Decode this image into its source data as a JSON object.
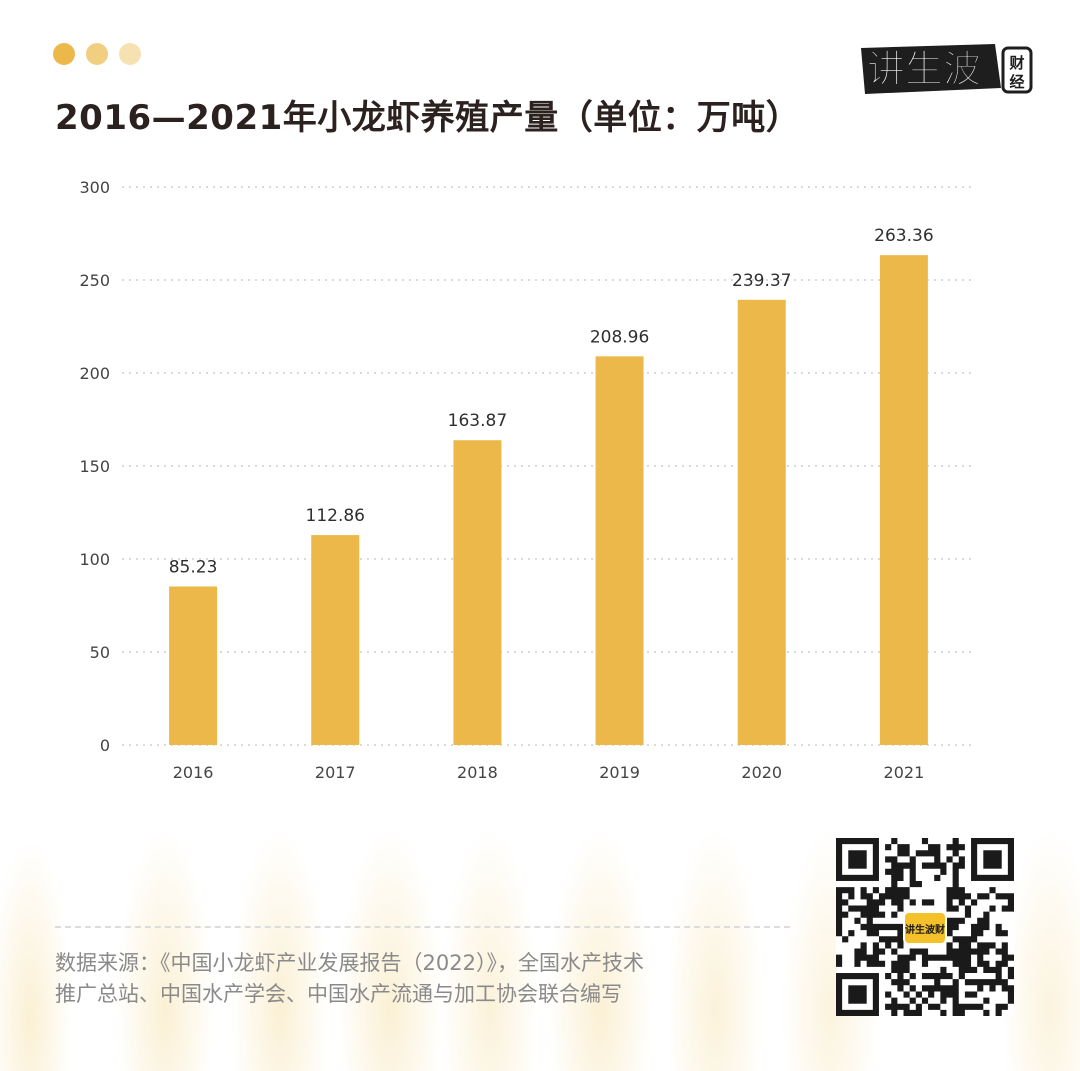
{
  "header": {
    "title": "2016—2021年小龙虾养殖产量（单位：万吨）",
    "dot_colors": [
      "#ECB84A",
      "#F1CF80",
      "#F6E1B1"
    ]
  },
  "logo": {
    "text_main": "讲生波",
    "text_side_top": "财",
    "text_side_bottom": "经"
  },
  "qr": {
    "center_label": "讲生波财"
  },
  "source": {
    "line1": "数据来源：《中国小龙虾产业发展报告（2022）》，全国水产技术",
    "line2": "推广总站、中国水产学会、中国水产流通与加工协会联合编写"
  },
  "chart_data": {
    "type": "bar",
    "title": "2016—2021年小龙虾养殖产量（单位：万吨）",
    "categories": [
      "2016",
      "2017",
      "2018",
      "2019",
      "2020",
      "2021"
    ],
    "values": [
      85.23,
      112.86,
      163.87,
      208.96,
      239.37,
      263.36
    ],
    "data_labels": [
      "85.23",
      "112.86",
      "163.87",
      "208.96",
      "239.37",
      "263.36"
    ],
    "ylim": [
      0,
      300
    ],
    "yticks": [
      0,
      50,
      100,
      150,
      200,
      250,
      300
    ],
    "grid": true,
    "bar_color": "#ECB84A",
    "xlabel": "",
    "ylabel": ""
  }
}
